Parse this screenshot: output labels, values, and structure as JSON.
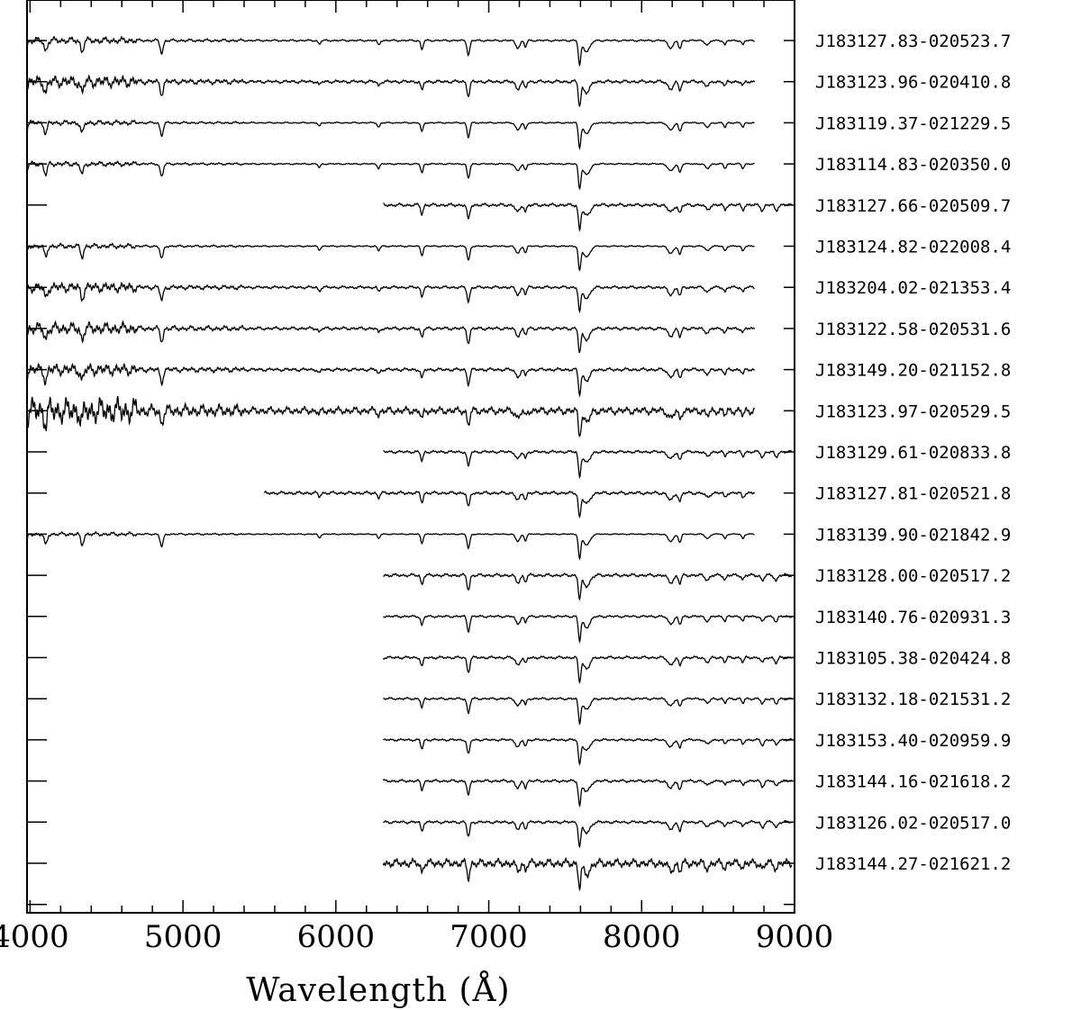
{
  "chart_data": {
    "type": "line",
    "xlabel": "Wavelength (Å)",
    "xlim": [
      3980,
      9000
    ],
    "x_ticks": [
      4000,
      5000,
      6000,
      7000,
      8000,
      9000
    ],
    "x_tick_labels": [
      "4000",
      "5000",
      "6000",
      "7000",
      "8000",
      "9000"
    ],
    "grid": false,
    "series": [
      {
        "name": "J183127.83-020523.7",
        "x_range": [
          3980,
          8740
        ],
        "noise": 0.2
      },
      {
        "name": "J183123.96-020410.8",
        "x_range": [
          3980,
          8740
        ],
        "noise": 0.35
      },
      {
        "name": "J183119.37-021229.5",
        "x_range": [
          3980,
          8740
        ],
        "noise": 0.15
      },
      {
        "name": "J183114.83-020350.0",
        "x_range": [
          3980,
          8740
        ],
        "noise": 0.15
      },
      {
        "name": "J183127.66-020509.7",
        "x_range": [
          6310,
          8980
        ],
        "noise": 0.35
      },
      {
        "name": "J183124.82-022008.4",
        "x_range": [
          3980,
          8740
        ],
        "noise": 0.15
      },
      {
        "name": "J183204.02-021353.4",
        "x_range": [
          3980,
          8740
        ],
        "noise": 0.3
      },
      {
        "name": "J183122.58-020531.6",
        "x_range": [
          3980,
          8740
        ],
        "noise": 0.35
      },
      {
        "name": "J183149.20-021152.8",
        "x_range": [
          3980,
          8740
        ],
        "noise": 0.35
      },
      {
        "name": "J183123.97-020529.5",
        "x_range": [
          3980,
          8740
        ],
        "noise": 0.8
      },
      {
        "name": "J183129.61-020833.8",
        "x_range": [
          6310,
          8980
        ],
        "noise": 0.3
      },
      {
        "name": "J183127.81-020521.8",
        "x_range": [
          5530,
          8740
        ],
        "noise": 0.35
      },
      {
        "name": "J183139.90-021842.9",
        "x_range": [
          3980,
          8740
        ],
        "noise": 0.12
      },
      {
        "name": "J183128.00-020517.2",
        "x_range": [
          6310,
          8980
        ],
        "noise": 0.35
      },
      {
        "name": "J183140.76-020931.3",
        "x_range": [
          6310,
          8980
        ],
        "noise": 0.25
      },
      {
        "name": "J183105.38-020424.8",
        "x_range": [
          6310,
          8980
        ],
        "noise": 0.3
      },
      {
        "name": "J183132.18-021531.2",
        "x_range": [
          6310,
          8980
        ],
        "noise": 0.25
      },
      {
        "name": "J183153.40-020959.9",
        "x_range": [
          6310,
          8980
        ],
        "noise": 0.25
      },
      {
        "name": "J183144.16-021618.2",
        "x_range": [
          6310,
          8980
        ],
        "noise": 0.3
      },
      {
        "name": "J183126.02-020517.0",
        "x_range": [
          6310,
          8980
        ],
        "noise": 0.3
      },
      {
        "name": "J183144.27-021621.2",
        "x_range": [
          6310,
          8980
        ],
        "noise": 0.9
      }
    ]
  }
}
